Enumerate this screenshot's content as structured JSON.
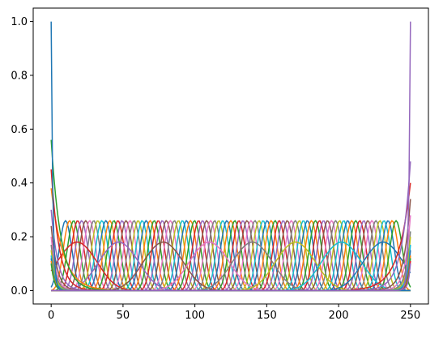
{
  "chart_data": {
    "type": "line",
    "title": "",
    "xlabel": "",
    "ylabel": "",
    "xlim": [
      -12.5,
      262.5
    ],
    "ylim": [
      -0.05,
      1.05
    ],
    "x_ticks": [
      0,
      50,
      100,
      150,
      200,
      250
    ],
    "y_ticks": [
      0.0,
      0.2,
      0.4,
      0.6,
      0.8,
      1.0
    ],
    "x_tick_labels": [
      "0",
      "50",
      "100",
      "150",
      "200",
      "250"
    ],
    "y_tick_labels": [
      "0.0",
      "0.2",
      "0.4",
      "0.6",
      "0.8",
      "1.0"
    ],
    "grid": false,
    "legend": "none",
    "description_of_series": "Dense overlay of B-spline basis functions on x in [0, 250]; interior basis functions peak near 0.26 (fine) and 0.18 (coarse); boundary basis functions reach 1.0 at x=0 and x=250.",
    "n_x": 251,
    "families": [
      {
        "kind": "boundary",
        "edge": "left",
        "peak_x": 0,
        "peak_y": 1.0
      },
      {
        "kind": "boundary",
        "edge": "right",
        "peak_x": 250,
        "peak_y": 1.0
      },
      {
        "kind": "fine-interior",
        "count": 83,
        "x_start": 10,
        "x_end": 240,
        "peak_y": 0.26,
        "half_width": 7
      },
      {
        "kind": "coarse-interior",
        "count": 8,
        "centers": [
          18,
          47,
          78,
          110,
          140,
          170,
          202,
          231
        ],
        "peak_y": 0.18,
        "half_width": 22
      },
      {
        "kind": "left-decay",
        "count": 12,
        "edge": "left",
        "start_y": [
          0.38,
          0.56,
          0.45,
          0.3,
          0.24,
          0.2,
          0.17,
          0.15,
          0.13,
          0.12,
          0.11,
          0.1
        ]
      },
      {
        "kind": "right-decay",
        "count": 12,
        "edge": "right",
        "start_y": [
          0.4,
          0.48,
          0.34,
          0.28,
          0.22,
          0.2,
          0.17,
          0.15,
          0.13,
          0.12,
          0.11,
          0.1
        ]
      }
    ],
    "colors": [
      "#1f77b4",
      "#ff7f0e",
      "#2ca02c",
      "#d62728",
      "#9467bd",
      "#8c564b",
      "#e377c2",
      "#7f7f7f",
      "#bcbd22",
      "#17becf"
    ]
  }
}
